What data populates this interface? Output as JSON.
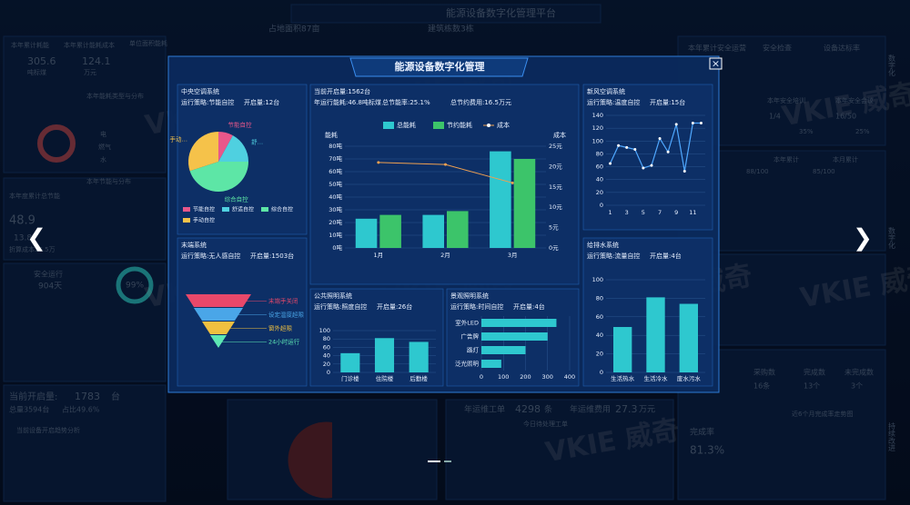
{
  "background": {
    "watermark": "VKIE 威奇",
    "labels": [
      "能源设备数字化管理平台",
      "本年累计耗能",
      "本年累计能耗成本",
      "305.6",
      "吨标煤",
      "124.1",
      "万元",
      "单位面积能耗",
      "本年能耗类型与分布",
      "电",
      "燃气",
      "水",
      "本年节能与分布",
      "本年度累计总节能",
      "48.9",
      "13.8",
      "折算成本16.5万",
      "安全运行",
      "904天",
      "99%",
      "当前开启量:",
      "1783",
      "台",
      "总量3594台",
      "占比49.6%",
      "当前设备开启趋势分析",
      "本年累计安全运营",
      "安全检查",
      "设备达标率",
      "本年安全培训",
      "本年安全会议",
      "1/4",
      "16/50",
      "35%",
      "25%",
      "本年累计",
      "本月累计",
      "88/100",
      "85/100",
      "数字化",
      "数字化",
      "持续改进",
      "年运维工单",
      "4298",
      "条",
      "年运维费用",
      "27.3",
      "万元",
      "今日待处理工单",
      "完成率",
      "81.3%",
      "近6个月完成率走势图",
      "采购数",
      "16条",
      "完成数",
      "13个",
      "未完成数",
      "3个",
      "占地面积87亩",
      "建筑栋数3栋"
    ]
  },
  "modal": {
    "title": "能源设备数字化管理",
    "close": "×",
    "panels": [
      {
        "title": "中央空调系统",
        "strategy": "运行策略:节能自控",
        "count": "开启量:12台",
        "chart": {
          "type": "pie",
          "categories": [
            "节能自控",
            "舒适自控",
            "综合自控",
            "手动自控"
          ],
          "slice_labels": [
            "节能自控",
            "舒…",
            "综合自控",
            "手动…"
          ],
          "values": [
            8,
            17,
            45,
            30
          ],
          "colors": [
            "#e8578a",
            "#4fd0e0",
            "#5de6a6",
            "#f5c24a"
          ]
        }
      },
      {
        "title": "末端系统",
        "strategy": "运行策略:无人感自控",
        "count": "开启量:1503台",
        "chart": {
          "type": "funnel",
          "categories": [
            "末端手关闭",
            "设定温度超限",
            "窗外超限",
            "24小时运行"
          ],
          "values": [
            100,
            75,
            50,
            25
          ],
          "colors": [
            "#e8486a",
            "#4aa6e8",
            "#f0c040",
            "#5ee8b4"
          ]
        }
      },
      {
        "title": "当前开启量:1562台",
        "stats": [
          "年运行能耗:46.8吨标煤",
          "总节能率:25.1%",
          "总节约费用:16.5万元"
        ],
        "chart": {
          "type": "combo",
          "y_label": "能耗",
          "y2_label": "成本",
          "categories": [
            "1月",
            "2月",
            "3月"
          ],
          "series": [
            {
              "name": "总能耗",
              "color": "#2ec8cf",
              "values": [
                23,
                26,
                76
              ]
            },
            {
              "name": "节约能耗",
              "color": "#3cc46a",
              "values": [
                26,
                29,
                70
              ]
            },
            {
              "name": "成本",
              "color": "#f0a050",
              "values": [
                21,
                20.5,
                16
              ],
              "axis": "y2",
              "type": "line"
            }
          ],
          "ylim": [
            0,
            80
          ],
          "yticks": [
            {
              "value": 0,
              "label": "0吨"
            },
            {
              "value": 10,
              "label": "10吨"
            },
            {
              "value": 20,
              "label": "20吨"
            },
            {
              "value": 30,
              "label": "30吨"
            },
            {
              "value": 40,
              "label": "40吨"
            },
            {
              "value": 50,
              "label": "50吨"
            },
            {
              "value": 60,
              "label": "60吨"
            },
            {
              "value": 70,
              "label": "70吨"
            },
            {
              "value": 80,
              "label": "80吨"
            }
          ],
          "y2lim": [
            0,
            25
          ],
          "y2ticks": [
            {
              "value": 0,
              "label": "0元"
            },
            {
              "value": 5,
              "label": "5元"
            },
            {
              "value": 10,
              "label": "10元"
            },
            {
              "value": 15,
              "label": "15元"
            },
            {
              "value": 20,
              "label": "20元"
            },
            {
              "value": 25,
              "label": "25元"
            }
          ]
        }
      },
      {
        "title": "新风空调系统",
        "strategy": "运行策略:温度自控",
        "count": "开启量:15台",
        "chart": {
          "type": "line",
          "color": "#4fa8ff",
          "x": [
            1,
            2,
            3,
            4,
            5,
            6,
            7,
            8,
            9,
            10,
            11,
            12
          ],
          "values": [
            65,
            93,
            90,
            87,
            58,
            62,
            104,
            83,
            126,
            53,
            128,
            128
          ],
          "xlim": [
            0.5,
            12.5
          ],
          "xticks": [
            1,
            3,
            5,
            7,
            9,
            11
          ],
          "ylim": [
            0,
            140
          ],
          "yticks": [
            0,
            20,
            40,
            60,
            80,
            100,
            120,
            140
          ]
        }
      },
      {
        "title": "公共照明系统",
        "strategy": "运行策略:照度自控",
        "count": "开启量:26台",
        "chart": {
          "type": "bar",
          "color": "#2ec8cf",
          "categories": [
            "门诊楼",
            "住院楼",
            "后勤楼"
          ],
          "values": [
            46,
            82,
            73
          ],
          "ylim": [
            0,
            100
          ],
          "yticks": [
            0,
            20,
            40,
            60,
            80,
            100
          ]
        }
      },
      {
        "title": "景观照明系统",
        "strategy": "运行策略:时间自控",
        "count": "开启量:4台",
        "chart": {
          "type": "hbar",
          "color": "#2ec8cf",
          "categories": [
            "室外LED",
            "广告牌",
            "路灯",
            "泛光照明"
          ],
          "values": [
            340,
            300,
            200,
            90
          ],
          "xlim": [
            0,
            400
          ],
          "xticks": [
            0,
            100,
            200,
            300,
            400
          ]
        }
      },
      {
        "title": "给排水系统",
        "strategy": "运行策略:流量自控",
        "count": "开启量:4台",
        "chart": {
          "type": "bar",
          "color": "#2ec8cf",
          "categories": [
            "生活热水",
            "生活冷水",
            "废水污水"
          ],
          "values": [
            49,
            81,
            74
          ],
          "ylim": [
            0,
            100
          ],
          "yticks": [
            0,
            20,
            40,
            60,
            80,
            100
          ]
        }
      }
    ]
  }
}
